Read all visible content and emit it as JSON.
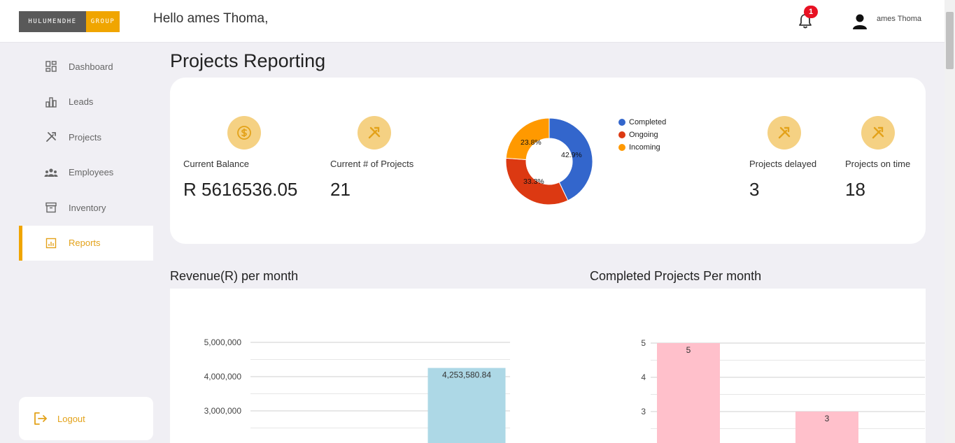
{
  "header": {
    "logo_left": "HULUMENDHE",
    "logo_right": "GROUP",
    "greeting": "Hello ames Thoma,",
    "notification_count": "1",
    "user_name": "ames Thoma"
  },
  "sidebar": {
    "items": [
      {
        "label": "Dashboard",
        "icon": "dashboard-icon"
      },
      {
        "label": "Leads",
        "icon": "bar-chart-icon"
      },
      {
        "label": "Projects",
        "icon": "tools-icon"
      },
      {
        "label": "Employees",
        "icon": "people-icon"
      },
      {
        "label": "Inventory",
        "icon": "archive-icon"
      },
      {
        "label": "Reports",
        "icon": "report-icon",
        "active": true
      }
    ],
    "logout_label": "Logout"
  },
  "page_title": "Projects Reporting",
  "stats": {
    "balance_label": "Current Balance",
    "balance_value": "R 5616536.05",
    "projects_label": "Current # of Projects",
    "projects_value": "21",
    "delayed_label": "Projects delayed",
    "delayed_value": "3",
    "ontime_label": "Projects on time",
    "ontime_value": "18"
  },
  "colors": {
    "accent": "#f0a500",
    "icon_circle": "#f5d183",
    "completed": "#3366cc",
    "ongoing": "#dc3912",
    "incoming": "#ff9900",
    "revenue_bar": "#add8e6",
    "completed_bar": "#ffc0cb"
  },
  "chart_data": [
    {
      "type": "pie",
      "donut": true,
      "categories": [
        "Completed",
        "Ongoing",
        "Incoming"
      ],
      "values": [
        42.9,
        33.3,
        23.8
      ],
      "labels": [
        "42.9%",
        "33.3%",
        "23.8%"
      ],
      "legend": "right"
    },
    {
      "type": "bar",
      "title": "Revenue(R) per month",
      "categories": [
        "",
        ""
      ],
      "values": [
        null,
        4253580.84
      ],
      "data_labels": [
        "",
        "4,253,580.84"
      ],
      "yticks": [
        "5,000,000",
        "4,000,000",
        "3,000,000"
      ],
      "ytick_values": [
        5000000,
        4000000,
        3000000
      ],
      "grid": true
    },
    {
      "type": "bar",
      "title": "Completed Projects Per month",
      "categories": [
        "",
        ""
      ],
      "values": [
        5,
        3
      ],
      "data_labels": [
        "5",
        "3"
      ],
      "yticks": [
        "5",
        "4",
        "3"
      ],
      "ytick_values": [
        5,
        4,
        3
      ],
      "grid": true
    }
  ]
}
